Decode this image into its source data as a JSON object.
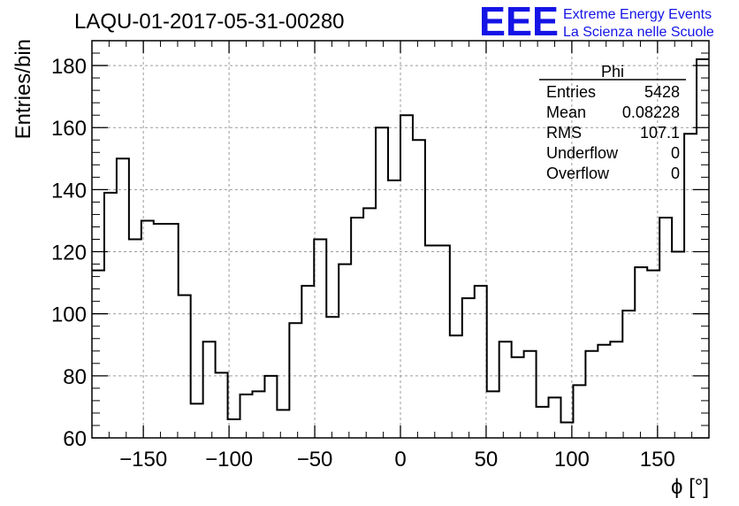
{
  "chart_data": {
    "type": "histogram",
    "title": "LAQU-01-2017-05-31-00280",
    "xlabel": "ϕ [°]",
    "ylabel": "Entries/bin",
    "xlim": [
      -180,
      180
    ],
    "ylim": [
      60,
      188
    ],
    "grid": true,
    "bin_width": 7.2,
    "x_ticks": [
      -150,
      -100,
      -50,
      0,
      50,
      100,
      150
    ],
    "x_tick_labels": [
      "−150",
      "−100",
      "−50",
      "0",
      "50",
      "100",
      "150"
    ],
    "y_ticks": [
      60,
      80,
      100,
      120,
      140,
      160,
      180
    ],
    "values": [
      114,
      139,
      150,
      124,
      130,
      129,
      129,
      106,
      71,
      91,
      81,
      66,
      74,
      75,
      80,
      69,
      97,
      109,
      124,
      99,
      116,
      131,
      134,
      160,
      143,
      164,
      156,
      122,
      122,
      93,
      105,
      109,
      75,
      91,
      86,
      88,
      70,
      73,
      65,
      77,
      88,
      90,
      91,
      101,
      115,
      114,
      131,
      120,
      158,
      182
    ],
    "stats_box": {
      "title": "Phi",
      "rows": [
        {
          "label": "Entries",
          "value": "5428"
        },
        {
          "label": "Mean",
          "value": "0.08228"
        },
        {
          "label": "RMS",
          "value": "107.1"
        },
        {
          "label": "Underflow",
          "value": "0"
        },
        {
          "label": "Overflow",
          "value": "0"
        }
      ]
    }
  },
  "logo": {
    "mark": "EEE",
    "line1": "Extreme Energy Events",
    "line2": "La Scienza nelle Scuole",
    "color": "#1414e6"
  }
}
